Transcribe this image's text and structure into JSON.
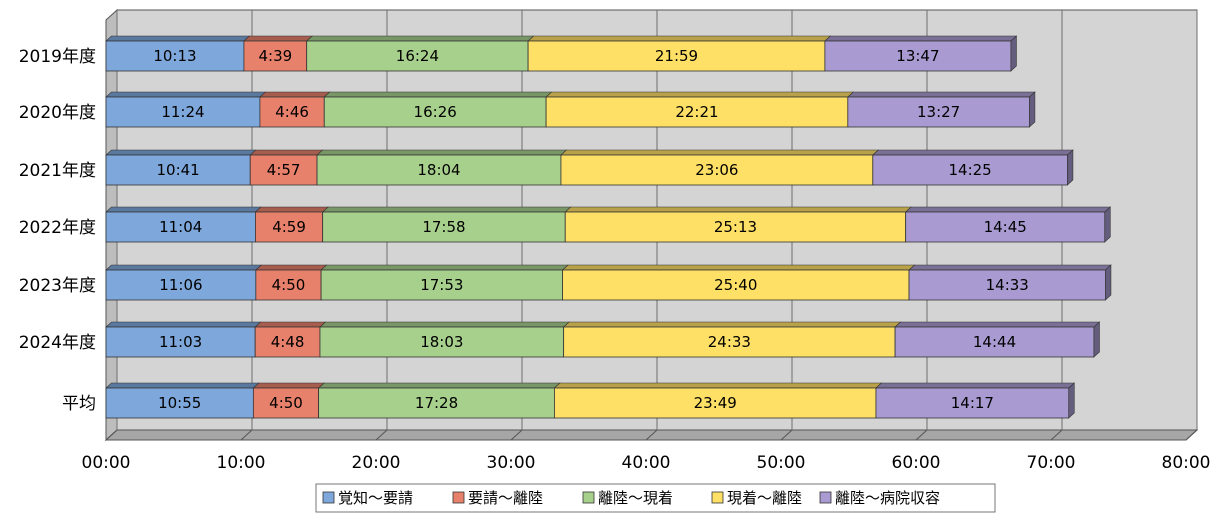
{
  "chart_data": {
    "type": "bar",
    "orientation": "horizontal",
    "stacked": true,
    "categories": [
      "2019年度",
      "2020年度",
      "2021年度",
      "2022年度",
      "2023年度",
      "2024年度",
      "平均"
    ],
    "xlim": [
      0,
      80
    ],
    "x_unit": "minutes",
    "ticks": [
      "00:00",
      "10:00",
      "20:00",
      "30:00",
      "40:00",
      "50:00",
      "60:00",
      "70:00",
      "80:00"
    ],
    "grid": true,
    "legend_position": "bottom",
    "series": [
      {
        "name": "覚知～要請",
        "color": "#7ea8dc",
        "values": [
          10.217,
          11.4,
          10.683,
          11.067,
          11.1,
          11.05,
          10.917
        ],
        "labels": [
          "10:13",
          "11:24",
          "10:41",
          "11:04",
          "11:06",
          "11:03",
          "10:55"
        ]
      },
      {
        "name": "要請～離陸",
        "color": "#e8816b",
        "values": [
          4.65,
          4.767,
          4.95,
          4.983,
          4.833,
          4.8,
          4.833
        ],
        "labels": [
          "4:39",
          "4:46",
          "4:57",
          "4:59",
          "4:50",
          "4:48",
          "4:50"
        ]
      },
      {
        "name": "離陸～現着",
        "color": "#a8d08d",
        "values": [
          16.4,
          16.433,
          18.067,
          17.967,
          17.883,
          18.05,
          17.467
        ],
        "labels": [
          "16:24",
          "16:26",
          "18:04",
          "17:58",
          "17:53",
          "18:03",
          "17:28"
        ]
      },
      {
        "name": "現着～離陸",
        "color": "#ffe066",
        "values": [
          21.983,
          22.35,
          23.1,
          25.217,
          25.667,
          24.55,
          23.817
        ],
        "labels": [
          "21:59",
          "22:21",
          "23:06",
          "25:13",
          "25:40",
          "24:33",
          "23:49"
        ]
      },
      {
        "name": "離陸～病院収容",
        "color": "#a99bd1",
        "values": [
          13.783,
          13.45,
          14.417,
          14.75,
          14.55,
          14.733,
          14.283
        ],
        "labels": [
          "13:47",
          "13:27",
          "14:25",
          "14:45",
          "14:33",
          "14:44",
          "14:17"
        ]
      }
    ]
  }
}
